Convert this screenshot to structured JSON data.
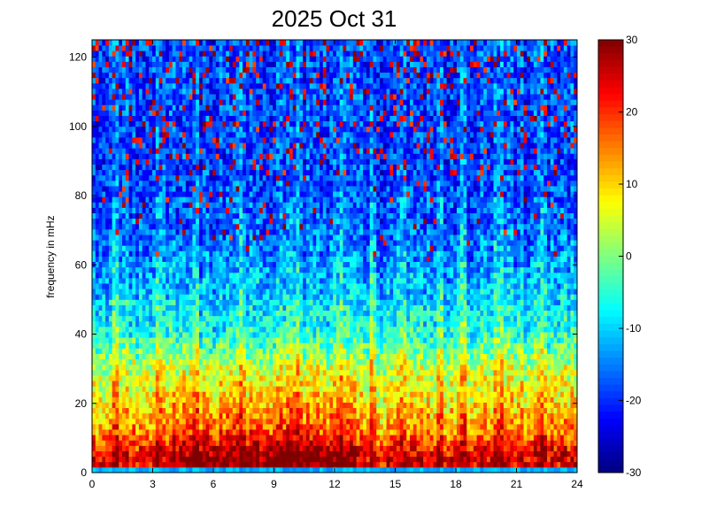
{
  "chart_data": {
    "type": "heatmap",
    "title": "2025 Oct 31",
    "xlabel": "",
    "ylabel": "frequency in mHz",
    "xlim": [
      0,
      24
    ],
    "ylim": [
      0,
      125
    ],
    "x_ticks": [
      "0",
      "3",
      "6",
      "9",
      "12",
      "15",
      "18",
      "21",
      "24"
    ],
    "y_ticks": [
      "0",
      "20",
      "40",
      "60",
      "80",
      "100",
      "120"
    ],
    "colorbar": {
      "range": [
        -30,
        30
      ],
      "ticks": [
        "30",
        "20",
        "10",
        "0",
        "-10",
        "-20",
        "-30"
      ],
      "colormap": "jet"
    },
    "grid_resolution": {
      "x_bins": 145,
      "y_bins": 80
    },
    "profile": {
      "description_levels": [
        {
          "freq": 1,
          "level": 24
        },
        {
          "freq": 5,
          "level": 24
        },
        {
          "freq": 12,
          "level": 14
        },
        {
          "freq": 20,
          "level": 9
        },
        {
          "freq": 30,
          "level": 4
        },
        {
          "freq": 40,
          "level": -6
        },
        {
          "freq": 55,
          "level": -12
        },
        {
          "freq": 70,
          "level": -17
        },
        {
          "freq": 90,
          "level": -19
        },
        {
          "freq": 125,
          "level": -18
        }
      ],
      "strong_time_band": [
        4,
        13
      ],
      "strong_band_boost": 6,
      "streak_times": [
        1.2,
        3.3,
        5.1,
        7.4,
        10,
        12.2,
        13.9,
        15.4,
        17.2,
        18.3,
        20.1,
        22.3
      ],
      "bottom_row_level": -12,
      "top_region_red_speckle_fraction": 0.15
    }
  }
}
